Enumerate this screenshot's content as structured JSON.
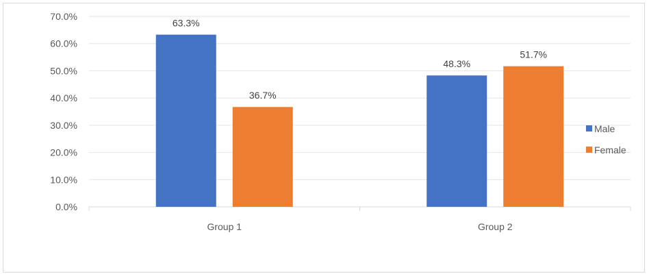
{
  "chart_data": {
    "type": "bar",
    "categories": [
      "Group 1",
      "Group 2"
    ],
    "series": [
      {
        "name": "Male",
        "values": [
          63.3,
          48.3
        ],
        "color": "#4472C4"
      },
      {
        "name": "Female",
        "values": [
          36.7,
          51.7
        ],
        "color": "#ED7D31"
      }
    ],
    "data_labels": [
      [
        "63.3%",
        "48.3%"
      ],
      [
        "36.7%",
        "51.7%"
      ]
    ],
    "y_ticks": [
      "0.0%",
      "10.0%",
      "20.0%",
      "30.0%",
      "40.0%",
      "50.0%",
      "60.0%",
      "70.0%"
    ],
    "ylim": [
      0,
      70
    ],
    "y_unit": "%",
    "grid": true,
    "legend_position": "right",
    "title": "",
    "xlabel": "",
    "ylabel": ""
  }
}
